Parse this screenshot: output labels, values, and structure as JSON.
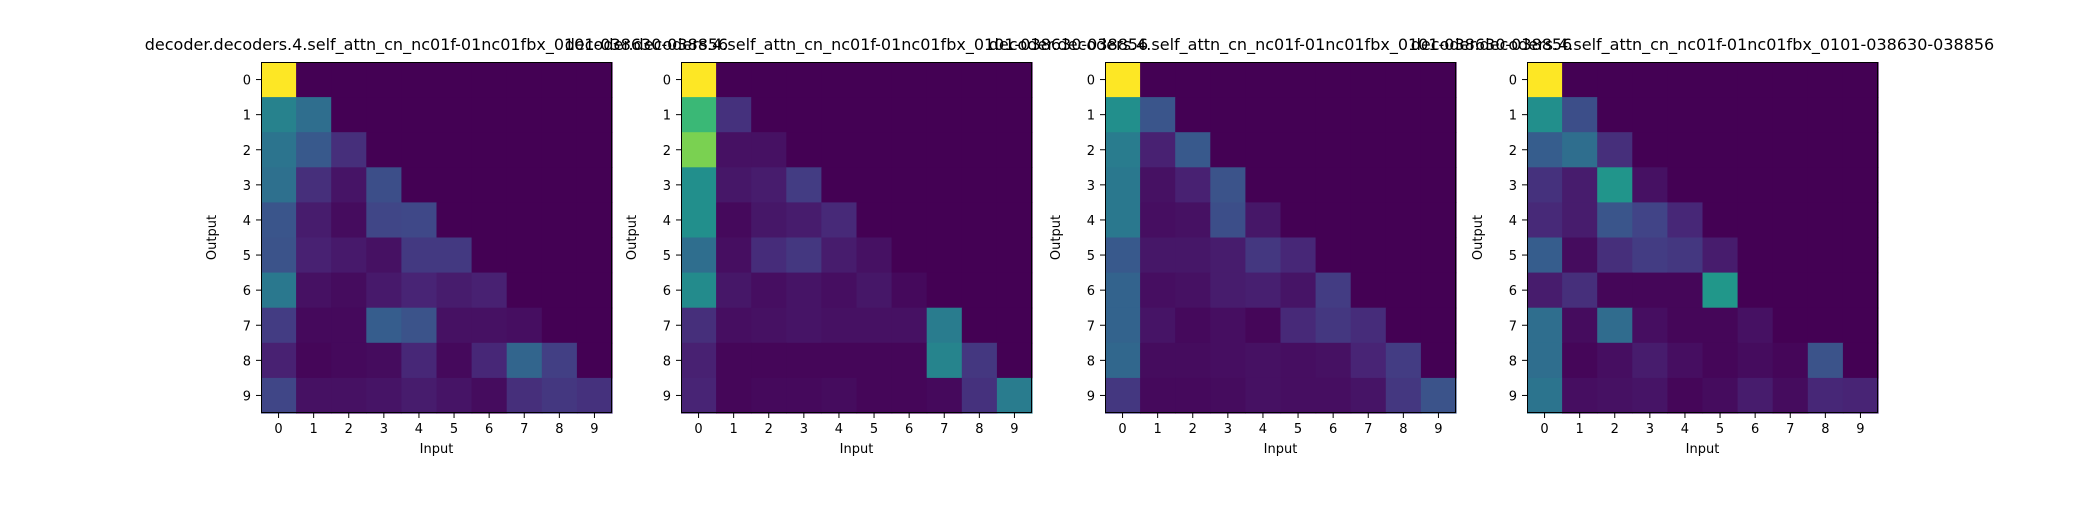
{
  "colormap": "viridis",
  "chart_data": [
    {
      "type": "heatmap",
      "title": "decoder.decoders.4.self_attn_cn_nc01f-01nc01fbx_0101-038630-038856",
      "xlabel": "Input",
      "ylabel": "Output",
      "x_ticks": [
        "0",
        "1",
        "2",
        "3",
        "4",
        "5",
        "6",
        "7",
        "8",
        "9"
      ],
      "y_ticks": [
        "0",
        "1",
        "2",
        "3",
        "4",
        "5",
        "6",
        "7",
        "8",
        "9"
      ],
      "values": [
        [
          1.0,
          0.0,
          0.0,
          0.0,
          0.0,
          0.0,
          0.0,
          0.0,
          0.0,
          0.0
        ],
        [
          0.55,
          0.45,
          0.0,
          0.0,
          0.0,
          0.0,
          0.0,
          0.0,
          0.0,
          0.0
        ],
        [
          0.48,
          0.35,
          0.17,
          0.0,
          0.0,
          0.0,
          0.0,
          0.0,
          0.0,
          0.0
        ],
        [
          0.46,
          0.17,
          0.07,
          0.3,
          0.0,
          0.0,
          0.0,
          0.0,
          0.0,
          0.0
        ],
        [
          0.33,
          0.1,
          0.04,
          0.26,
          0.27,
          0.0,
          0.0,
          0.0,
          0.0,
          0.0
        ],
        [
          0.32,
          0.12,
          0.09,
          0.06,
          0.21,
          0.21,
          0.0,
          0.0,
          0.0,
          0.0
        ],
        [
          0.5,
          0.06,
          0.04,
          0.09,
          0.13,
          0.1,
          0.12,
          0.0,
          0.0,
          0.0
        ],
        [
          0.22,
          0.03,
          0.03,
          0.37,
          0.32,
          0.06,
          0.06,
          0.05,
          0.0,
          0.0
        ],
        [
          0.12,
          0.02,
          0.03,
          0.04,
          0.14,
          0.03,
          0.14,
          0.41,
          0.23,
          0.0
        ],
        [
          0.26,
          0.06,
          0.06,
          0.07,
          0.1,
          0.07,
          0.04,
          0.17,
          0.2,
          0.18
        ]
      ]
    },
    {
      "type": "heatmap",
      "title": "decoder.decoders.4.self_attn_cn_nc01f-01nc01fbx_0101-038630-038856",
      "xlabel": "Input",
      "ylabel": "Output",
      "x_ticks": [
        "0",
        "1",
        "2",
        "3",
        "4",
        "5",
        "6",
        "7",
        "8",
        "9"
      ],
      "y_ticks": [
        "0",
        "1",
        "2",
        "3",
        "4",
        "5",
        "6",
        "7",
        "8",
        "9"
      ],
      "values": [
        [
          1.0,
          0.0,
          0.0,
          0.0,
          0.0,
          0.0,
          0.0,
          0.0,
          0.0,
          0.0
        ],
        [
          0.8,
          0.18,
          0.0,
          0.0,
          0.0,
          0.0,
          0.0,
          0.0,
          0.0,
          0.0
        ],
        [
          0.88,
          0.06,
          0.06,
          0.0,
          0.0,
          0.0,
          0.0,
          0.0,
          0.0,
          0.0
        ],
        [
          0.62,
          0.08,
          0.1,
          0.22,
          0.0,
          0.0,
          0.0,
          0.0,
          0.0,
          0.0
        ],
        [
          0.62,
          0.03,
          0.08,
          0.1,
          0.15,
          0.0,
          0.0,
          0.0,
          0.0,
          0.0
        ],
        [
          0.45,
          0.05,
          0.16,
          0.2,
          0.1,
          0.06,
          0.0,
          0.0,
          0.0,
          0.0
        ],
        [
          0.6,
          0.08,
          0.05,
          0.07,
          0.05,
          0.08,
          0.03,
          0.0,
          0.0,
          0.0
        ],
        [
          0.17,
          0.05,
          0.06,
          0.07,
          0.06,
          0.06,
          0.06,
          0.52,
          0.0,
          0.0
        ],
        [
          0.12,
          0.02,
          0.02,
          0.02,
          0.02,
          0.02,
          0.02,
          0.56,
          0.2,
          0.0
        ],
        [
          0.13,
          0.02,
          0.03,
          0.03,
          0.04,
          0.02,
          0.02,
          0.03,
          0.18,
          0.52
        ]
      ]
    },
    {
      "type": "heatmap",
      "title": "decoder.decoders.4.self_attn_cn_nc01f-01nc01fbx_0101-038630-038856",
      "xlabel": "Input",
      "ylabel": "Output",
      "x_ticks": [
        "0",
        "1",
        "2",
        "3",
        "4",
        "5",
        "6",
        "7",
        "8",
        "9"
      ],
      "y_ticks": [
        "0",
        "1",
        "2",
        "3",
        "4",
        "5",
        "6",
        "7",
        "8",
        "9"
      ],
      "values": [
        [
          1.0,
          0.0,
          0.0,
          0.0,
          0.0,
          0.0,
          0.0,
          0.0,
          0.0,
          0.0
        ],
        [
          0.62,
          0.33,
          0.0,
          0.0,
          0.0,
          0.0,
          0.0,
          0.0,
          0.0,
          0.0
        ],
        [
          0.52,
          0.12,
          0.35,
          0.0,
          0.0,
          0.0,
          0.0,
          0.0,
          0.0,
          0.0
        ],
        [
          0.5,
          0.06,
          0.12,
          0.32,
          0.0,
          0.0,
          0.0,
          0.0,
          0.0,
          0.0
        ],
        [
          0.5,
          0.05,
          0.06,
          0.3,
          0.08,
          0.0,
          0.0,
          0.0,
          0.0,
          0.0
        ],
        [
          0.35,
          0.08,
          0.08,
          0.1,
          0.2,
          0.14,
          0.0,
          0.0,
          0.0,
          0.0
        ],
        [
          0.4,
          0.05,
          0.06,
          0.1,
          0.11,
          0.07,
          0.22,
          0.0,
          0.0,
          0.0
        ],
        [
          0.4,
          0.07,
          0.03,
          0.05,
          0.02,
          0.15,
          0.2,
          0.16,
          0.0,
          0.0
        ],
        [
          0.42,
          0.04,
          0.04,
          0.05,
          0.06,
          0.05,
          0.06,
          0.13,
          0.22,
          0.0
        ],
        [
          0.2,
          0.03,
          0.03,
          0.04,
          0.06,
          0.05,
          0.05,
          0.07,
          0.2,
          0.32
        ]
      ]
    },
    {
      "type": "heatmap",
      "title": "decoder.decoders.4.self_attn_cn_nc01f-01nc01fbx_0101-038630-038856",
      "xlabel": "Input",
      "ylabel": "Output",
      "x_ticks": [
        "0",
        "1",
        "2",
        "3",
        "4",
        "5",
        "6",
        "7",
        "8",
        "9"
      ],
      "y_ticks": [
        "0",
        "1",
        "2",
        "3",
        "4",
        "5",
        "6",
        "7",
        "8",
        "9"
      ],
      "values": [
        [
          1.0,
          0.0,
          0.0,
          0.0,
          0.0,
          0.0,
          0.0,
          0.0,
          0.0,
          0.0
        ],
        [
          0.62,
          0.3,
          0.0,
          0.0,
          0.0,
          0.0,
          0.0,
          0.0,
          0.0,
          0.0
        ],
        [
          0.37,
          0.45,
          0.17,
          0.0,
          0.0,
          0.0,
          0.0,
          0.0,
          0.0,
          0.0
        ],
        [
          0.18,
          0.1,
          0.65,
          0.06,
          0.0,
          0.0,
          0.0,
          0.0,
          0.0,
          0.0
        ],
        [
          0.15,
          0.1,
          0.33,
          0.25,
          0.14,
          0.0,
          0.0,
          0.0,
          0.0,
          0.0
        ],
        [
          0.37,
          0.04,
          0.17,
          0.22,
          0.2,
          0.1,
          0.0,
          0.0,
          0.0,
          0.0
        ],
        [
          0.1,
          0.17,
          0.02,
          0.02,
          0.02,
          0.66,
          0.0,
          0.0,
          0.0,
          0.0
        ],
        [
          0.45,
          0.04,
          0.44,
          0.05,
          0.02,
          0.02,
          0.06,
          0.0,
          0.0,
          0.0
        ],
        [
          0.45,
          0.02,
          0.05,
          0.1,
          0.05,
          0.02,
          0.04,
          0.02,
          0.32,
          0.0
        ],
        [
          0.48,
          0.05,
          0.06,
          0.07,
          0.02,
          0.04,
          0.1,
          0.04,
          0.14,
          0.13
        ]
      ]
    }
  ]
}
